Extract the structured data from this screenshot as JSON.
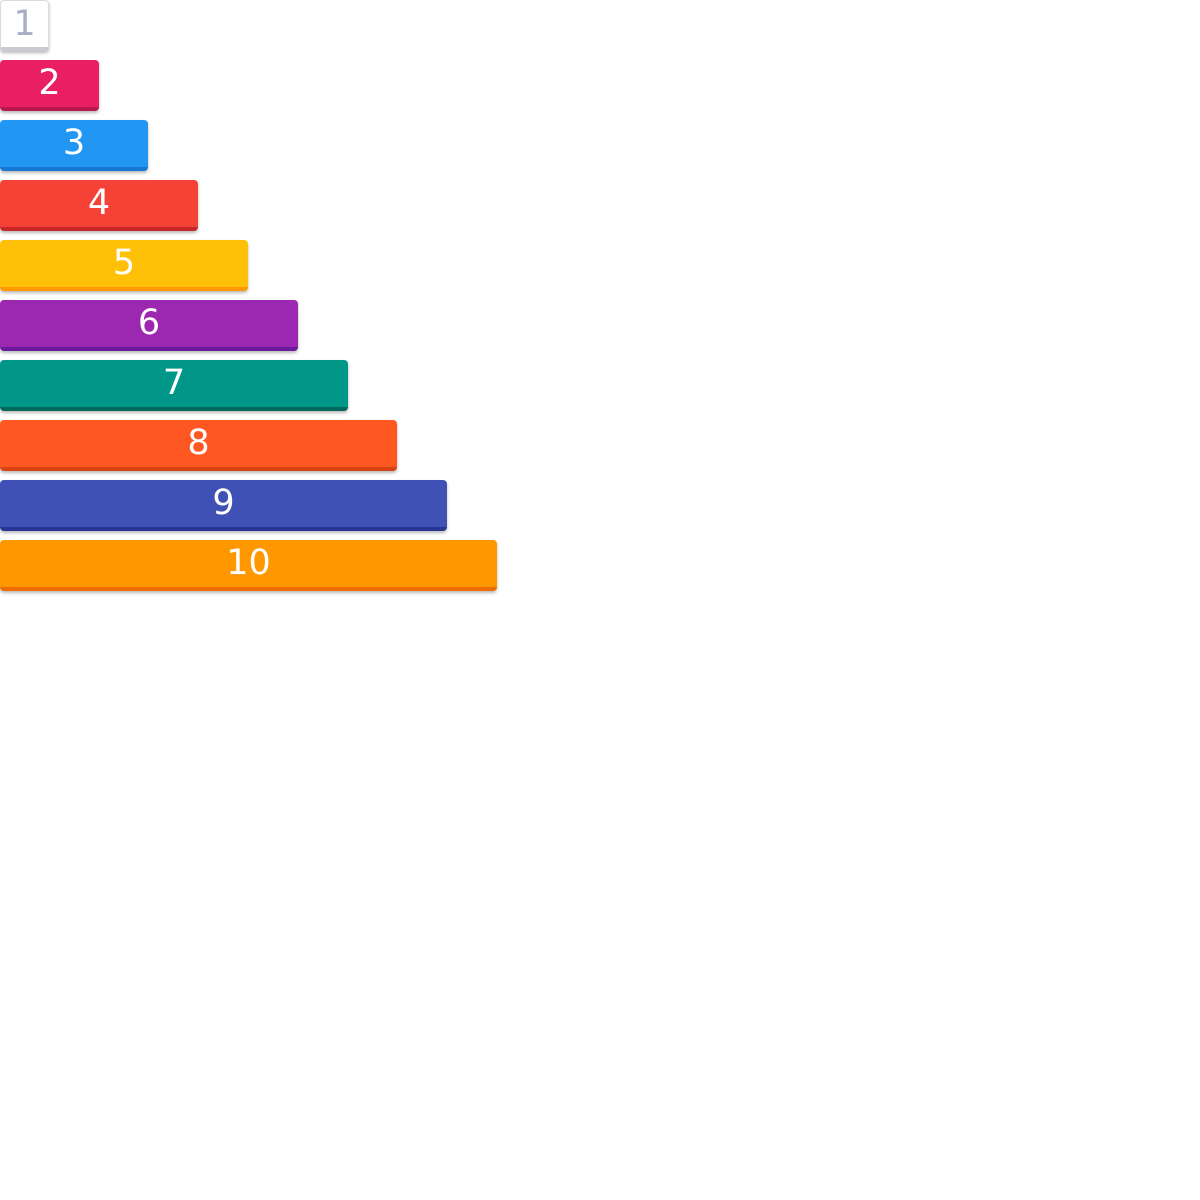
{
  "rods": [
    {
      "value": 1,
      "label": "1",
      "color": "#ffffff",
      "edge": "#c9cbd4",
      "text_color": "#a9aec7"
    },
    {
      "value": 2,
      "label": "2",
      "color": "#e91e63",
      "edge": "#b8174f",
      "text_color": "#ffffff"
    },
    {
      "value": 3,
      "label": "3",
      "color": "#2196f3",
      "edge": "#1976d2",
      "text_color": "#ffffff"
    },
    {
      "value": 4,
      "label": "4",
      "color": "#f44336",
      "edge": "#c62828",
      "text_color": "#ffffff"
    },
    {
      "value": 5,
      "label": "5",
      "color": "#ffc107",
      "edge": "#ff9800",
      "text_color": "#ffffff"
    },
    {
      "value": 6,
      "label": "6",
      "color": "#9c27b0",
      "edge": "#6a1b9a",
      "text_color": "#ffffff"
    },
    {
      "value": 7,
      "label": "7",
      "color": "#009688",
      "edge": "#00695c",
      "text_color": "#ffffff"
    },
    {
      "value": 8,
      "label": "8",
      "color": "#ff5722",
      "edge": "#d84315",
      "text_color": "#ffffff"
    },
    {
      "value": 9,
      "label": "9",
      "color": "#3f51b5",
      "edge": "#283593",
      "text_color": "#ffffff"
    },
    {
      "value": 10,
      "label": "10",
      "color": "#ff9800",
      "edge": "#ef6c00",
      "text_color": "#ffffff"
    }
  ]
}
